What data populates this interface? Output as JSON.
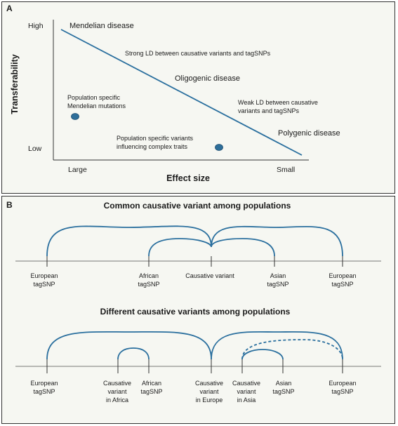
{
  "panel_a": {
    "label": "A",
    "y_axis_label": "Transferability",
    "y_high": "High",
    "y_low": "Low",
    "x_axis_label": "Effect size",
    "x_large": "Large",
    "x_small": "Small",
    "mendelian": "Mendelian disease",
    "strong_ld": "Strong LD between causative variants and tagSNPs",
    "oligogenic": "Oligogenic disease",
    "weak_ld_1": "Weak LD between causative",
    "weak_ld_2": "variants and tagSNPs",
    "polygenic": "Polygenic disease",
    "pop_mendelian_1": "Population specific",
    "pop_mendelian_2": "Mendelian mutations",
    "pop_complex_1": "Population specific variants",
    "pop_complex_2": "influencing complex traits",
    "colors": {
      "line": "#2a6f9e",
      "dot": "#2e6e99"
    }
  },
  "panel_b": {
    "label": "B",
    "common_title": "Common causative variant among populations",
    "different_title": "Different causative variants among populations",
    "common_labels": {
      "european_left_1": "European",
      "european_left_2": "tagSNP",
      "african_1": "African",
      "african_2": "tagSNP",
      "causative": "Causative variant",
      "asian_1": "Asian",
      "asian_2": "tagSNP",
      "european_right_1": "European",
      "european_right_2": "tagSNP"
    },
    "different_labels": {
      "european_left_1": "European",
      "european_left_2": "tagSNP",
      "causative_africa_1": "Causative",
      "causative_africa_2": "variant",
      "causative_africa_3": "in Africa",
      "african_1": "African",
      "african_2": "tagSNP",
      "causative_europe_1": "Causative",
      "causative_europe_2": "variant",
      "causative_europe_3": "in Europe",
      "causative_asia_1": "Causative",
      "causative_asia_2": "variant",
      "causative_asia_3": "in Asia",
      "asian_1": "Asian",
      "asian_2": "tagSNP",
      "european_right_1": "European",
      "european_right_2": "tagSNP"
    },
    "colors": {
      "arc": "#2a6f9e",
      "axis": "#777777"
    }
  }
}
